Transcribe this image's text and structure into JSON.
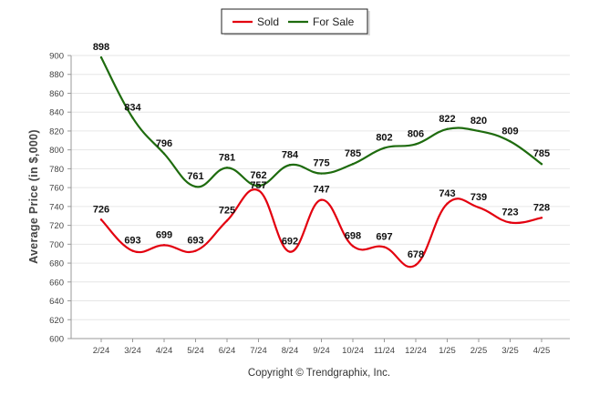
{
  "chart_data": {
    "type": "line",
    "title": "",
    "xlabel": "",
    "ylabel": "Average Price (in $,000)",
    "categories": [
      "2/24",
      "3/24",
      "4/24",
      "5/24",
      "6/24",
      "7/24",
      "8/24",
      "9/24",
      "10/24",
      "11/24",
      "12/24",
      "1/25",
      "2/25",
      "3/25",
      "4/25"
    ],
    "ylim": [
      600,
      900
    ],
    "yticks": [
      600,
      620,
      640,
      660,
      680,
      700,
      720,
      740,
      760,
      780,
      800,
      820,
      840,
      860,
      880,
      900
    ],
    "grid": true,
    "legend_position": "top-center",
    "series": [
      {
        "name": "Sold",
        "color": "#e3000f",
        "values": [
          726,
          693,
          699,
          693,
          725,
          757,
          692,
          747,
          698,
          697,
          678,
          743,
          739,
          723,
          728
        ]
      },
      {
        "name": "For Sale",
        "color": "#1e6b0e",
        "values": [
          898,
          834,
          796,
          761,
          781,
          762,
          784,
          775,
          785,
          802,
          806,
          822,
          820,
          809,
          785
        ]
      }
    ]
  },
  "footer": {
    "copyright": "Copyright © Trendgraphix, Inc."
  }
}
